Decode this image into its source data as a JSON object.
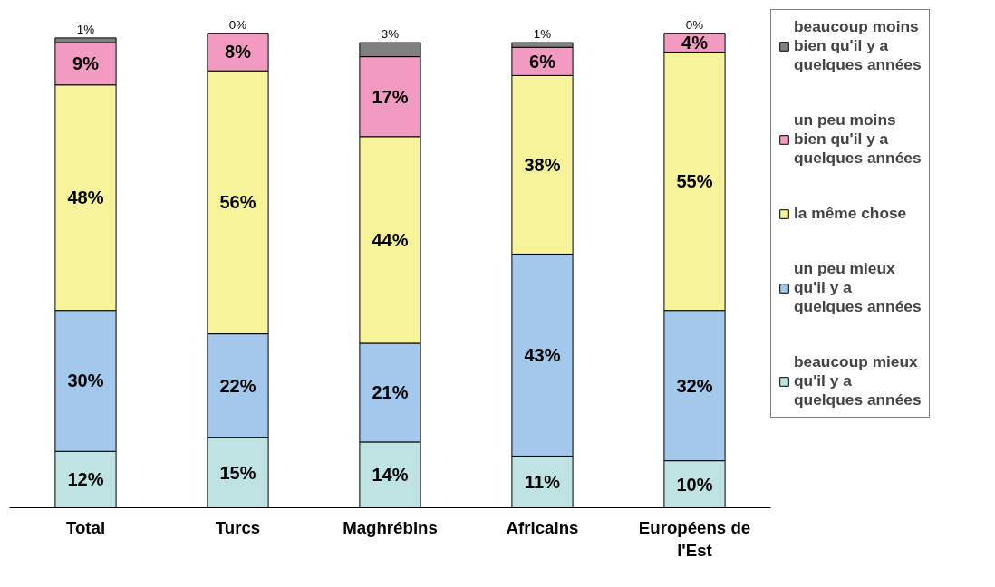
{
  "chart_data": {
    "type": "bar",
    "stacked": true,
    "grid": false,
    "legend": "right",
    "categories": [
      "Total",
      "Turcs",
      "Maghrébins",
      "Africains",
      "Européens de l'Est"
    ],
    "series": [
      {
        "name": "beaucoup mieux qu'il y a quelques années",
        "color": "#bfe3e3",
        "values": [
          12,
          15,
          14,
          11,
          10
        ],
        "value_labels": [
          "12%",
          "15%",
          "14%",
          "11%",
          "10%"
        ]
      },
      {
        "name": "un peu mieux qu'il y a quelques années",
        "color": "#a3c8eb",
        "values": [
          30,
          22,
          21,
          43,
          32
        ],
        "value_labels": [
          "30%",
          "22%",
          "21%",
          "43%",
          "32%"
        ]
      },
      {
        "name": "la même chose",
        "color": "#f7f39b",
        "values": [
          48,
          56,
          44,
          38,
          55
        ],
        "value_labels": [
          "48%",
          "56%",
          "44%",
          "38%",
          "55%"
        ]
      },
      {
        "name": "un peu moins bien qu'il y a quelques années",
        "color": "#f29bc1",
        "values": [
          9,
          8,
          17,
          6,
          4
        ],
        "value_labels": [
          "9%",
          "8%",
          "17%",
          "6%",
          "4%"
        ]
      },
      {
        "name": "beaucoup moins bien qu'il y a quelques années",
        "color": "#808080",
        "values": [
          1,
          0,
          3,
          1,
          0
        ],
        "value_labels": [
          "1%",
          "0%",
          "3%",
          "1%",
          "0%"
        ]
      }
    ]
  }
}
